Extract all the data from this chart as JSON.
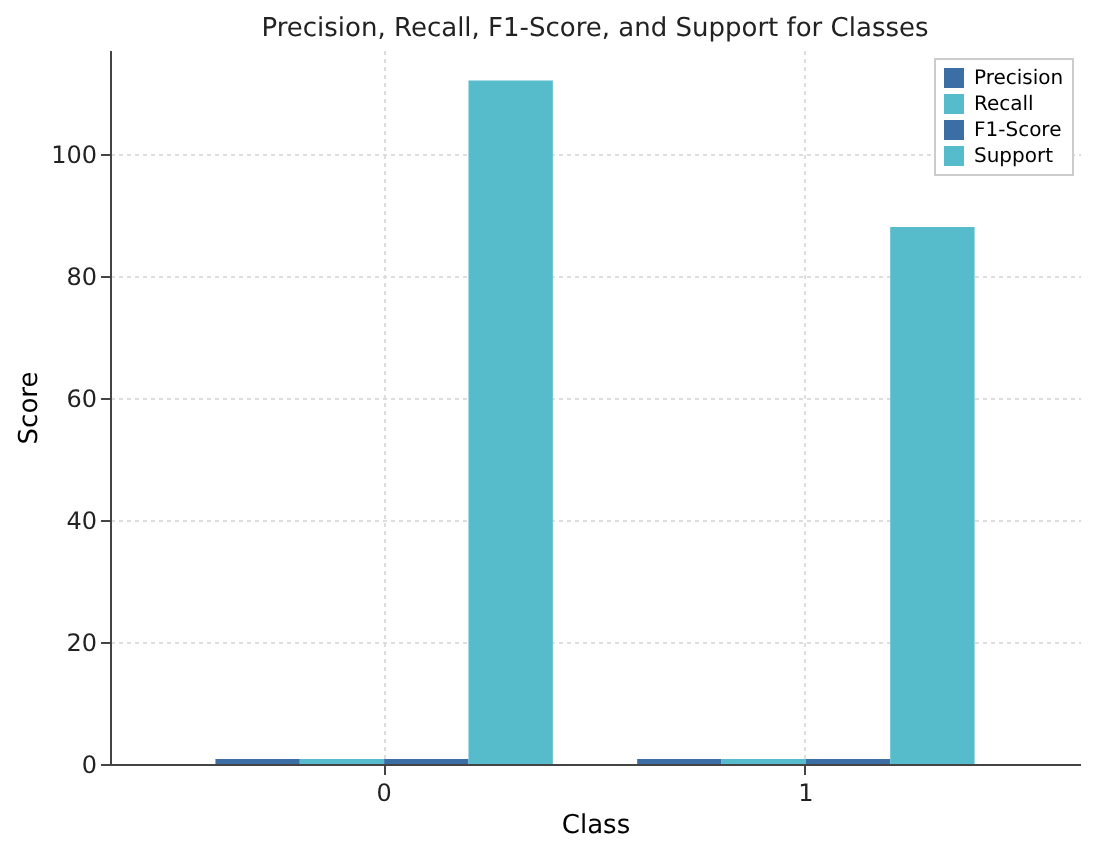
{
  "chart_data": {
    "type": "bar",
    "title": "Precision, Recall, F1-Score, and Support for Classes",
    "xlabel": "Class",
    "ylabel": "Score",
    "categories": [
      "0",
      "1"
    ],
    "series": [
      {
        "name": "Precision",
        "color": "#3b6ea5",
        "values": [
          0.8,
          0.8
        ]
      },
      {
        "name": "Recall",
        "color": "#56bccb",
        "values": [
          0.8,
          0.8
        ]
      },
      {
        "name": "F1-Score",
        "color": "#3b6ea5",
        "values": [
          0.8,
          0.8
        ]
      },
      {
        "name": "Support",
        "color": "#56bccb",
        "values": [
          112,
          88
        ]
      }
    ],
    "ylim": [
      0,
      117
    ],
    "yticks": [
      0,
      20,
      40,
      60,
      80,
      100
    ],
    "grid": true,
    "legend": "top right"
  }
}
